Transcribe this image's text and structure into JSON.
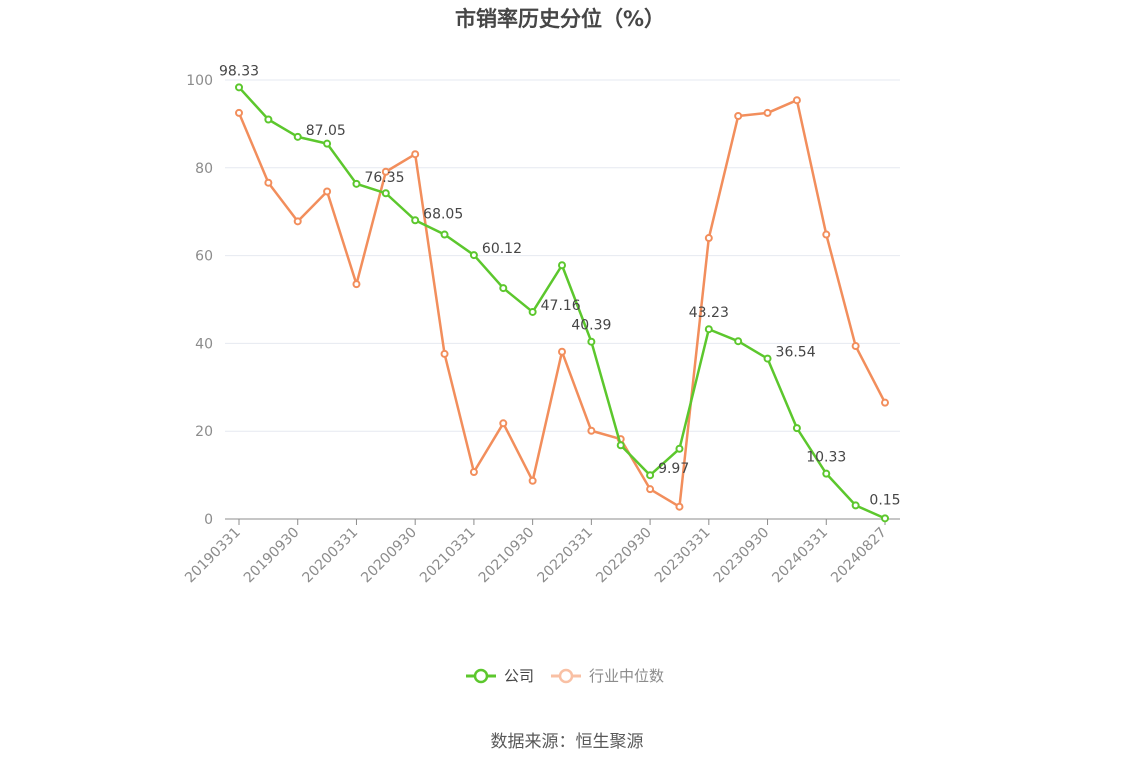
{
  "chart_data": {
    "type": "line",
    "title": "市销率历史分位（%）",
    "x": [
      "20190331",
      "20190630",
      "20190930",
      "20191231",
      "20200331",
      "20200630",
      "20200930",
      "20201231",
      "20210331",
      "20210630",
      "20210930",
      "20211231",
      "20220331",
      "20220630",
      "20220930",
      "20221231",
      "20230331",
      "20230630",
      "20230930",
      "20231231",
      "20240331",
      "20240630",
      "20240827"
    ],
    "x_tick_labels": [
      "20190331",
      "20190930",
      "20200331",
      "20200930",
      "20210331",
      "20210930",
      "20220331",
      "20220930",
      "20230331",
      "20230930",
      "20240331",
      "20240827"
    ],
    "x_tick_indices": [
      0,
      2,
      4,
      6,
      8,
      10,
      12,
      14,
      16,
      18,
      20,
      22
    ],
    "ylim": [
      0,
      100
    ],
    "y_ticks": [
      0,
      20,
      40,
      60,
      80,
      100
    ],
    "grid": true,
    "legend_position": "bottom",
    "series": [
      {
        "name": "公司",
        "color": "#5cc72d",
        "values": [
          98.33,
          91.0,
          87.05,
          85.5,
          76.35,
          74.2,
          68.05,
          64.8,
          60.12,
          52.6,
          47.16,
          57.8,
          40.39,
          16.8,
          9.97,
          16.0,
          43.23,
          40.5,
          36.54,
          20.7,
          10.33,
          3.1,
          0.15
        ],
        "labeled_indices": [
          0,
          2,
          4,
          6,
          8,
          10,
          12,
          14,
          16,
          18,
          20,
          22
        ],
        "data_labels": [
          "98.33",
          "87.05",
          "76.35",
          "68.05",
          "60.12",
          "47.16",
          "40.39",
          "9.97",
          "43.23",
          "36.54",
          "10.33",
          "0.15"
        ]
      },
      {
        "name": "行业中位数",
        "color": "#f28e5c",
        "values": [
          92.5,
          76.6,
          67.8,
          74.6,
          53.5,
          79.1,
          83.1,
          37.6,
          10.7,
          21.8,
          8.7,
          38.1,
          20.1,
          18.2,
          6.8,
          2.8,
          64.0,
          91.8,
          92.5,
          95.4,
          64.8,
          39.4,
          26.5
        ]
      }
    ],
    "legend_muted_color": "#f9c0a4"
  },
  "source_text": "数据来源：恒生聚源"
}
